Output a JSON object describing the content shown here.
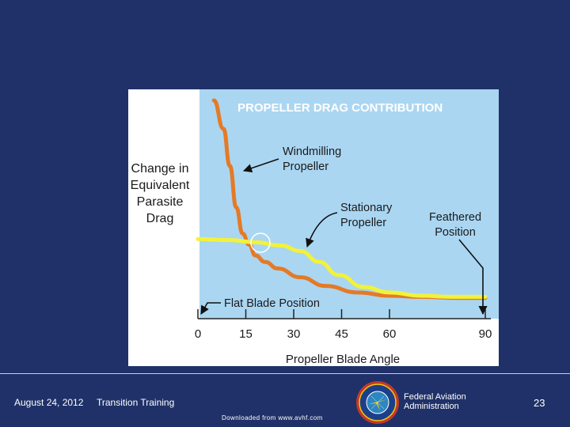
{
  "chart_data": {
    "type": "line",
    "title": "PROPELLER DRAG CONTRIBUTION",
    "xlabel": "Propeller Blade Angle",
    "ylabel": [
      "Change in",
      "Equivalent",
      "Parasite",
      "Drag"
    ],
    "x_ticks": [
      0,
      15,
      30,
      45,
      60,
      90
    ],
    "xlim": [
      0,
      90
    ],
    "ylim": [
      0,
      10
    ],
    "series": [
      {
        "name": "Windmilling Propeller",
        "color": "#e57a26",
        "points": [
          [
            5,
            10
          ],
          [
            8,
            8.7
          ],
          [
            10,
            7.0
          ],
          [
            12,
            5.1
          ],
          [
            14,
            3.9
          ],
          [
            16,
            3.4
          ],
          [
            18,
            2.9
          ],
          [
            21,
            2.6
          ],
          [
            25,
            2.3
          ],
          [
            32,
            1.9
          ],
          [
            40,
            1.5
          ],
          [
            50,
            1.2
          ],
          [
            60,
            1.05
          ],
          [
            70,
            1.0
          ],
          [
            82,
            0.95
          ],
          [
            90,
            0.95
          ]
        ]
      },
      {
        "name": "Stationary Propeller",
        "color": "#f2f23a",
        "points": [
          [
            0,
            3.65
          ],
          [
            10,
            3.6
          ],
          [
            18,
            3.5
          ],
          [
            26,
            3.35
          ],
          [
            32,
            3.1
          ],
          [
            38,
            2.6
          ],
          [
            44,
            2.0
          ],
          [
            52,
            1.45
          ],
          [
            60,
            1.2
          ],
          [
            70,
            1.05
          ],
          [
            80,
            1.0
          ],
          [
            90,
            1.0
          ]
        ]
      }
    ],
    "annotations": {
      "windmilling": [
        "Windmilling",
        "Propeller"
      ],
      "stationary": [
        "Stationary",
        "Propeller"
      ],
      "feathered": [
        "Feathered",
        "Position"
      ],
      "flat_blade": "Flat Blade Position"
    },
    "colors": {
      "plot_background": "#aad6f2",
      "title_color": "#ffffff",
      "text": "#1a1a1a",
      "axis": "#222222"
    }
  },
  "footer": {
    "date": "August 24, 2012",
    "course": "Transition Training",
    "agency_line1": "Federal Aviation",
    "agency_line2": "Administration",
    "page_number": "23",
    "source": "Downloaded from www.avhf.com"
  }
}
